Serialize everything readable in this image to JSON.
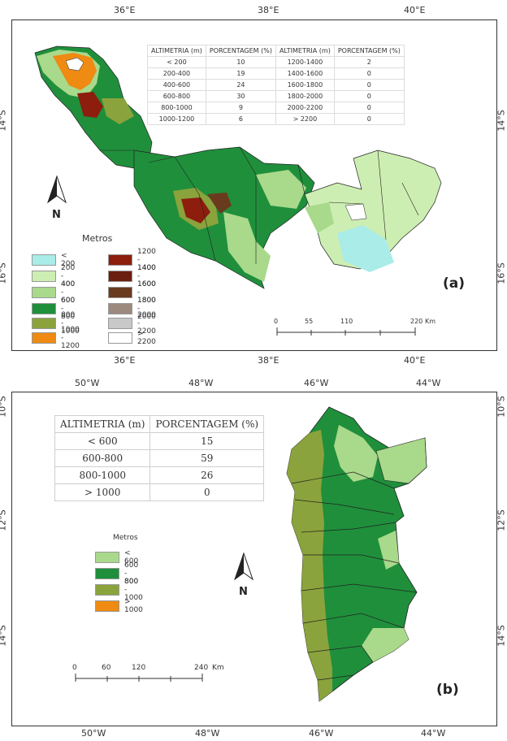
{
  "panel_a": {
    "label": "(a)",
    "top_coords": [
      "36°E",
      "38°E",
      "40°E"
    ],
    "bottom_coords": [
      "36°E",
      "38°E",
      "40°E"
    ],
    "left_coords": [
      "14°S",
      "16°S"
    ],
    "right_coords": [
      "14°S",
      "16°S"
    ],
    "north": "N",
    "legend_title": "Metros",
    "legend_left": [
      {
        "label": "< 200",
        "color": "#a9ece8"
      },
      {
        "label": "200 - 400",
        "color": "#cdeeb2"
      },
      {
        "label": "400 - 600",
        "color": "#a9d98b"
      },
      {
        "label": "600 - 800",
        "color": "#1f8f3b"
      },
      {
        "label": "800 - 1000",
        "color": "#8aa33c"
      },
      {
        "label": "1000 - 1200",
        "color": "#ef8a12"
      }
    ],
    "legend_right": [
      {
        "label": "1200 - 1400",
        "color": "#8d1d0d"
      },
      {
        "label": "1400 - 1600",
        "color": "#6b1f10"
      },
      {
        "label": "1600 - 1800",
        "color": "#6a3a1e"
      },
      {
        "label": "1800 - 2000",
        "color": "#9c8a7e"
      },
      {
        "label": "2000 - 2200",
        "color": "#c8c8c8"
      },
      {
        "label": "> 2200",
        "color": "#ffffff"
      }
    ],
    "table": {
      "headers": [
        "ALTIMETRIA (m)",
        "PORCENTAGEM (%)",
        "ALTIMETRIA (m)",
        "PORCENTAGEM (%)"
      ],
      "rows": [
        [
          "< 200",
          "10",
          "1200-1400",
          "2"
        ],
        [
          "200-400",
          "19",
          "1400-1600",
          "0"
        ],
        [
          "400-600",
          "24",
          "1600-1800",
          "0"
        ],
        [
          "600-800",
          "30",
          "1800-2000",
          "0"
        ],
        [
          "800-1000",
          "9",
          "2000-2200",
          "0"
        ],
        [
          "1000-1200",
          "6",
          "> 2200",
          "0"
        ]
      ]
    },
    "scale": {
      "ticks": [
        "0",
        "55",
        "110",
        "220"
      ],
      "unit": "Km"
    }
  },
  "panel_b": {
    "label": "(b)",
    "top_coords": [
      "50°W",
      "48°W",
      "46°W",
      "44°W"
    ],
    "bottom_coords": [
      "50°W",
      "48°W",
      "46°W",
      "44°W"
    ],
    "left_coords": [
      "10°S",
      "12°S",
      "14°S"
    ],
    "right_coords": [
      "10°S",
      "12°S",
      "14°S"
    ],
    "north": "N",
    "legend_title": "Metros",
    "legend": [
      {
        "label": "< 600",
        "color": "#a9d98b"
      },
      {
        "label": "600 - 800",
        "color": "#1f8f3b"
      },
      {
        "label": "800 - 1000",
        "color": "#8aa33c"
      },
      {
        "label": "> 1000",
        "color": "#ef8a12"
      }
    ],
    "table": {
      "headers": [
        "ALTIMETRIA (m)",
        "PORCENTAGEM (%)"
      ],
      "rows": [
        [
          "< 600",
          "15"
        ],
        [
          "600-800",
          "59"
        ],
        [
          "800-1000",
          "26"
        ],
        [
          "> 1000",
          "0"
        ]
      ]
    },
    "scale": {
      "ticks": [
        "0",
        "60",
        "120",
        "240"
      ],
      "unit": "Km"
    }
  }
}
